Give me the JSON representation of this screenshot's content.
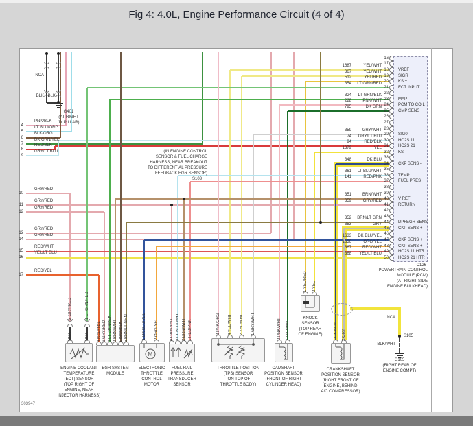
{
  "header": {
    "title": "Fig 4: 4.0L, Engine Performance Circuit (4 of 4)"
  },
  "drawing_number": "303947",
  "colors": {
    "page_bg": "#d6d6d6",
    "panel_border": "#9a9a9a",
    "connector_fill": "#edeffa",
    "footer_bar": "#7a7a7a",
    "shield": "#f2e43c",
    "YEL/WHT": "#f0e987",
    "YEL": "#f2e23c",
    "YEL/RED": "#e9c43f",
    "YEL/LT BLU": "#eee44c",
    "LT GRN/RED": "#74c476",
    "LT GRN/BLK": "#4daf4d",
    "DK GRN/YEL": "#3d9140",
    "DK GRN": "#1b6e2a",
    "BRN/LT GRN": "#8a7a42",
    "BRN/WHT": "#b5916b",
    "BRN/BLK": "#6e5844",
    "BLK/ORG": "#7d5a3c",
    "PNK/BLK": "#e8a7b7",
    "PNK/WHT": "#f2b9c0",
    "PNK/ORG": "#f0bcc8",
    "GRY/RED": "#e4a9ae",
    "RED/PNK": "#ee8f8f",
    "RED/BLK": "#d93b3b",
    "RED/WHT": "#dd5555",
    "RED/YEL": "#e8622e",
    "ORG/YEL": "#f2a73d",
    "LT BLU/ORG": "#9fdde9",
    "LT BLU/WHT": "#b5e3ee",
    "GRY/LT BLU": "#bfe6ee",
    "GRY/WHT": "#cfcfcf",
    "GRY": "#bdbdbd",
    "DK BLU": "#2c4a8c",
    "DK BLU/YEL": "#32549c",
    "BLK": "#3a3a3a",
    "BLK/WHT": "#4a4a4a",
    "LEAD": "#9a9a9a"
  },
  "note": {
    "lines": [
      "(IN ENGINE CONTROL",
      "SENSOR & FUEL CHARGE",
      "HARNESS, NEAR BREAKOUT",
      "TO DIFFERENTIAL PRESSURE",
      "FEEDBACK EGR SENSOR)"
    ],
    "splice": "S103"
  },
  "grounds": {
    "g401": {
      "nca": "NCA",
      "wire_labels": [
        "BLK",
        "BLK"
      ],
      "name": "G401",
      "location_lines": [
        "(AT RIGHT",
        "'D' PILLAR)"
      ]
    },
    "g105": {
      "nca": "NCA",
      "splice": "S105",
      "wire": "BLK/WHT",
      "name": "G105",
      "location_lines": [
        "(RIGHT REAR OF",
        "ENGINE COMPT)"
      ]
    }
  },
  "left_wires": [
    {
      "pin": "4",
      "color": "PNK/BLK"
    },
    {
      "pin": "5",
      "color": "LT BLU/ORG"
    },
    {
      "pin": "6",
      "color": "BLK/ORG"
    },
    {
      "pin": "7",
      "color": "DK GRN/YEL"
    },
    {
      "pin": "8",
      "color": "RED/BLK"
    },
    {
      "pin": "9",
      "color": "GRY/LT BLU"
    },
    {
      "pin": "10",
      "color": "GRY/RED"
    },
    {
      "pin": "11",
      "color": "GRY/RED"
    },
    {
      "pin": "12",
      "color": "GRY/RED"
    },
    {
      "pin": "13",
      "color": "GRY/RED"
    },
    {
      "pin": "14",
      "color": "GRY/RED"
    },
    {
      "pin": "15",
      "color": "RED/WHT"
    },
    {
      "pin": "16",
      "color": "YEL/LT BLU"
    },
    {
      "pin": "17",
      "color": "RED/YEL"
    }
  ],
  "pcm": {
    "connector": "C126",
    "name_lines": [
      "POWERTRAIN CONTROL",
      "MODULE (PCM)",
      "(AT RIGHT SIDE",
      "ENGINE BULKHEAD)"
    ],
    "pin_start": 16,
    "pin_end": 50,
    "pin_labels": {
      "18": "VREF",
      "19": "SIGR",
      "20": "KS +",
      "21": "ECT INPUT",
      "23": "MAP",
      "24": "PCM TO COIL",
      "25": "CMP SENS",
      "29": "SIG0",
      "30": "HO2S 11",
      "31": "HO2S 21",
      "32": "KS -",
      "34": "CKP SENS -",
      "36": "TEMP",
      "37": "FUEL PRES",
      "40": "V REF",
      "41": "RETURN",
      "44": "DPFEGR SENS",
      "45": "CKP SENS +",
      "47": "CKP SENS +",
      "48": "CKP SENS +",
      "49": "HO2S 11 HTR",
      "50": "HO2S 21 HTR"
    },
    "wires": [
      {
        "pin": 18,
        "circuit": "1687",
        "color": "YEL/WHT"
      },
      {
        "pin": 19,
        "circuit": "367",
        "color": "YEL/WHT"
      },
      {
        "pin": 20,
        "circuit": "512",
        "color": "YEL/RED"
      },
      {
        "pin": 21,
        "circuit": "354",
        "color": "LT GRN/RED"
      },
      {
        "pin": 23,
        "circuit": "324",
        "color": "LT GRN/BLK"
      },
      {
        "pin": 24,
        "circuit": "228",
        "color": "PNK/WHT"
      },
      {
        "pin": 25,
        "circuit": "795",
        "color": "DK GRN"
      },
      {
        "pin": 29,
        "circuit": "359",
        "color": "GRY/WHT"
      },
      {
        "pin": 30,
        "circuit": "74",
        "color": "GRY/LT BLU"
      },
      {
        "pin": 31,
        "circuit": "94",
        "color": "RED/BLK"
      },
      {
        "pin": 32,
        "circuit": "1379",
        "color": "YEL"
      },
      {
        "pin": 34,
        "circuit": "348",
        "color": "DK BLU"
      },
      {
        "pin": 36,
        "circuit": "361",
        "color": "LT BLU/WHT"
      },
      {
        "pin": 37,
        "circuit": "141",
        "color": "RED/PNK"
      },
      {
        "pin": 40,
        "circuit": "351",
        "color": "BRN/WHT"
      },
      {
        "pin": 41,
        "circuit": "359",
        "color": "GRY/RED"
      },
      {
        "pin": 44,
        "circuit": "352",
        "color": "BRN/LT GRN"
      },
      {
        "pin": 45,
        "circuit": "353",
        "color": "GRY"
      },
      {
        "pin": 47,
        "circuit": "1633",
        "color": "DK BLU/YEL"
      },
      {
        "pin": 48,
        "circuit": "1636",
        "color": "ORG/YEL"
      },
      {
        "pin": 49,
        "circuit": "367",
        "color": "RED/WHT"
      },
      {
        "pin": 50,
        "circuit": "368",
        "color": "YEL/LT BLU"
      }
    ]
  },
  "components": [
    {
      "id": "ect",
      "name_lines": [
        "ENGINE COOLANT",
        "TEMPERATURE",
        "(ECT) SENSOR",
        "(TOP RIGHT OF",
        "ENGINE, NEAR",
        "INJECTOR HARNESS)"
      ],
      "pins": [
        {
          "num": "2",
          "color": "GRY/RED"
        },
        {
          "num": "1",
          "color": "LT GRN/RED"
        }
      ],
      "extra_labels": [
        "NCA",
        "NCA"
      ]
    },
    {
      "id": "egr",
      "name_lines": [
        "EGR SYSTEM",
        "MODULE"
      ],
      "pins": [
        {
          "num": "4",
          "color": "RED/YEL"
        },
        {
          "num": "6",
          "color": "GRY/RED"
        },
        {
          "num": "3",
          "color": "LT GRN/BLK"
        },
        {
          "num": "2",
          "color": "BRN/WHT"
        },
        {
          "num": "1",
          "color": "BRN/BLK"
        },
        {
          "num": "5",
          "color": "BRN/LT GRN"
        }
      ]
    },
    {
      "id": "etc-motor",
      "name_lines": [
        "ELECTRONIC",
        "THROTTLE",
        "CONTROL",
        "MOTOR"
      ],
      "pins": [
        {
          "num": "1",
          "color": "DK BLU/YEL"
        },
        {
          "num": "2",
          "color": "ORG/YEL"
        }
      ]
    },
    {
      "id": "frpt",
      "name_lines": [
        "FUEL RAIL",
        "PRESSURE",
        "TRANSDUCER",
        "SENSOR"
      ],
      "pins": [
        {
          "num": "4",
          "color": "GRY/RED"
        },
        {
          "num": "3",
          "color": "LT BLU/WHT"
        },
        {
          "num": "2",
          "color": "BRN/WHT"
        },
        {
          "num": "1",
          "color": "RED/PNK"
        }
      ]
    },
    {
      "id": "tps",
      "name_lines": [
        "THROTTLE POSITION",
        "(TPS) SENSOR",
        "(ON TOP OF",
        "THROTTLE BODY)"
      ],
      "pins": [
        {
          "num": "3",
          "color": "PNK/ORG"
        },
        {
          "num": "4",
          "color": "YEL/WHT"
        },
        {
          "num": "2",
          "color": "YEL/WHT"
        },
        {
          "num": "1",
          "color": "GRY/WHT"
        }
      ]
    },
    {
      "id": "cmp",
      "name_lines": [
        "CAMSHAFT",
        "POSITION SENSOR",
        "(FRONT OF RIGHT",
        "CYLINDER HEAD)"
      ],
      "pins": [
        {
          "num": "2",
          "color": "PNK/WHT"
        },
        {
          "num": "1",
          "color": "DK GRN"
        }
      ]
    },
    {
      "id": "knock",
      "name_lines": [
        "KNOCK",
        "SENSOR",
        "(TOP REAR",
        "OF ENGINE)"
      ],
      "pins": [
        {
          "num": "1",
          "color": "YEL/RED"
        },
        {
          "num": "2",
          "color": "YEL"
        }
      ]
    },
    {
      "id": "ckp",
      "name_lines": [
        "CRANKSHAFT",
        "POSITION SENSOR",
        "(RIGHT FRONT OF",
        "ENGINE, BEHIND",
        "A/C COMPRESSOR)"
      ],
      "pins": [
        {
          "num": "1",
          "color": "DK BLU"
        },
        {
          "num": "2",
          "color": "GRY"
        }
      ]
    }
  ]
}
